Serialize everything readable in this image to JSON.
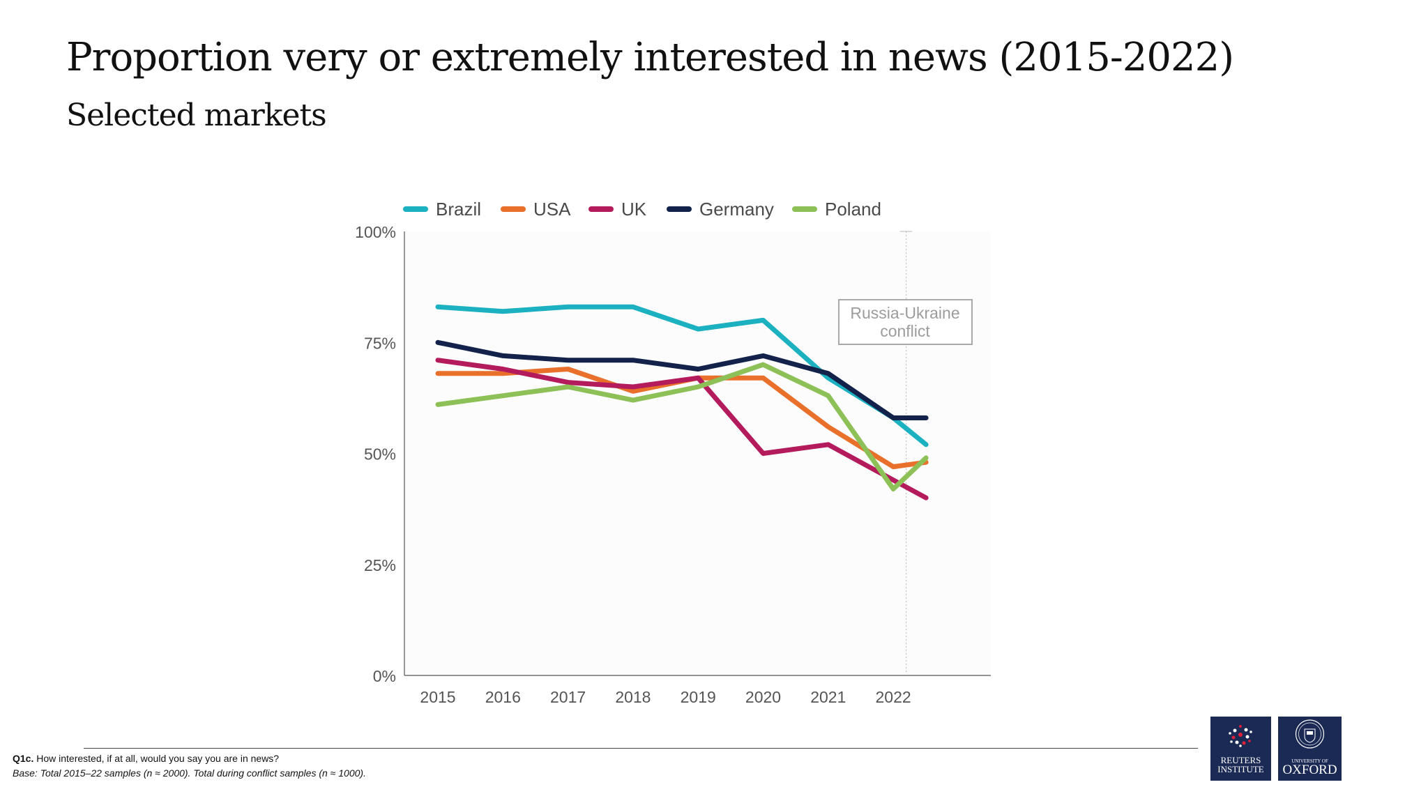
{
  "heading": {
    "title": "Proportion very or extremely interested in news (2015-2022)",
    "subtitle": "Selected markets"
  },
  "chart_data": {
    "type": "line",
    "x": [
      "2015",
      "2016",
      "2017",
      "2018",
      "2019",
      "2020",
      "2021",
      "2022",
      "2022 (conflict)"
    ],
    "y_ticks": [
      "0%",
      "25%",
      "50%",
      "75%",
      "100%"
    ],
    "ylim": [
      0,
      100
    ],
    "grid": false,
    "legend_position": "top",
    "series": [
      {
        "name": "Brazil",
        "color": "#1bb1c0",
        "values": [
          83,
          82,
          83,
          83,
          78,
          80,
          67,
          58,
          52
        ]
      },
      {
        "name": "USA",
        "color": "#e8702b",
        "values": [
          68,
          68,
          69,
          64,
          67,
          67,
          56,
          47,
          48
        ]
      },
      {
        "name": "UK",
        "color": "#b41b5c",
        "values": [
          71,
          69,
          66,
          65,
          67,
          50,
          52,
          44,
          40
        ]
      },
      {
        "name": "Germany",
        "color": "#13224a",
        "values": [
          75,
          72,
          71,
          71,
          69,
          72,
          68,
          58,
          58
        ]
      },
      {
        "name": "Poland",
        "color": "#8dc057",
        "values": [
          61,
          63,
          65,
          62,
          65,
          70,
          63,
          42,
          49
        ]
      }
    ],
    "annotation": {
      "text_line1": "Russia-Ukraine",
      "text_line2": "conflict",
      "at_x": "2022"
    }
  },
  "footer": {
    "question_label": "Q1c.",
    "question_text": " How interested, if at all, would you say you are in news?",
    "base_text": "Base: Total 2015–22 samples (n ≈ 2000). Total during conflict samples (n ≈ 1000)."
  },
  "logos": {
    "reuters_line1": "REUTERS",
    "reuters_line2": "INSTITUTE",
    "oxford_line1": "UNIVERSITY OF",
    "oxford_line2": "OXFORD"
  }
}
